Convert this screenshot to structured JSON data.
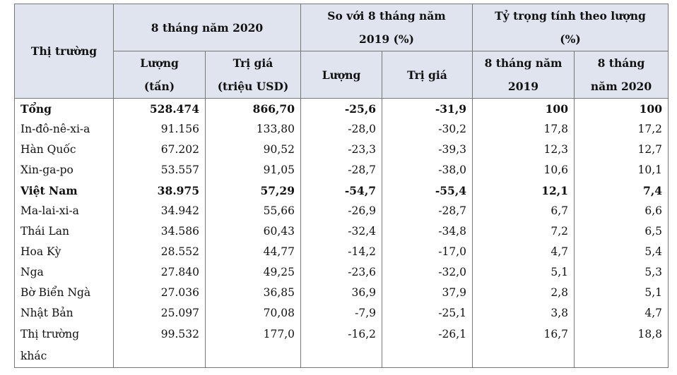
{
  "table": {
    "header": {
      "market": "Thị trường",
      "groups": [
        {
          "title": "8 tháng năm 2020",
          "sub": [
            "Lượng\n(tấn)",
            "Trị giá\n(triệu USD)"
          ]
        },
        {
          "title": "So với 8 tháng năm\n2019 (%)",
          "sub": [
            "Lượng",
            "Trị giá"
          ]
        },
        {
          "title": "Tỷ trọng tính theo lượng\n(%)",
          "sub": [
            "8 tháng năm\n2019",
            "8 tháng\nnăm 2020"
          ]
        }
      ]
    },
    "rows": [
      {
        "bold": true,
        "cells": [
          "Tổng",
          "528.474",
          "866,70",
          "-25,6",
          "-31,9",
          "100",
          "100"
        ]
      },
      {
        "cells": [
          "In-đô-nê-xi-a",
          "91.156",
          "133,80",
          "-28,0",
          "-30,2",
          "17,8",
          "17,2"
        ]
      },
      {
        "cells": [
          "Hàn Quốc",
          "67.202",
          "90,52",
          "-23,3",
          "-39,3",
          "12,3",
          "12,7"
        ]
      },
      {
        "cells": [
          "Xin-ga-po",
          "53.557",
          "91,05",
          "-28,7",
          "-38,0",
          "10,6",
          "10,1"
        ]
      },
      {
        "bold": true,
        "cells": [
          "Việt Nam",
          "38.975",
          "57,29",
          "-54,7",
          "-55,4",
          "12,1",
          "7,4"
        ]
      },
      {
        "cells": [
          "Ma-lai-xi-a",
          "34.942",
          "55,66",
          "-26,9",
          "-28,7",
          "6,7",
          "6,6"
        ]
      },
      {
        "cells": [
          "Thái Lan",
          "34.586",
          "60,43",
          "-32,4",
          "-34,8",
          "7,2",
          "6,5"
        ]
      },
      {
        "cells": [
          "Hoa Kỳ",
          "28.552",
          "44,77",
          "-14,2",
          "-17,0",
          "4,7",
          "5,4"
        ]
      },
      {
        "cells": [
          "Nga",
          "27.840",
          "49,25",
          "-23,6",
          "-32,0",
          "5,1",
          "5,3"
        ]
      },
      {
        "cells": [
          "Bờ Biển Ngà",
          "27.036",
          "36,85",
          "36,9",
          "37,9",
          "2,8",
          "5,1"
        ]
      },
      {
        "cells": [
          "Nhật Bản",
          "25.097",
          "70,08",
          "-7,9",
          "-25,1",
          "3,8",
          "4,7"
        ]
      },
      {
        "cells": [
          "Thị trường\nkhác",
          "99.532",
          "177,0",
          "-16,2",
          "-26,1",
          "16,7",
          "18,8"
        ]
      }
    ]
  }
}
